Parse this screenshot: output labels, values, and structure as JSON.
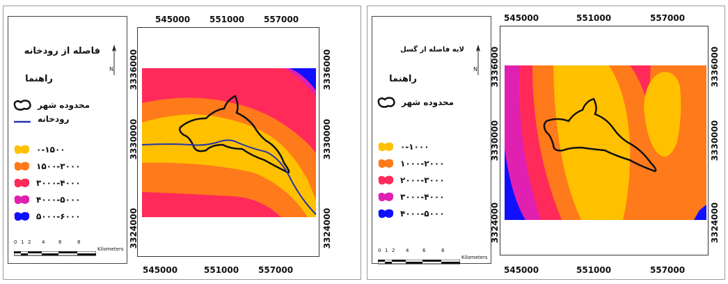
{
  "panels": [
    {
      "legend_title": "فاصله از رودخانه",
      "legend_subtitle": "راهنما",
      "boundary_label": "محدوده شهر",
      "river_label": "رودخانه",
      "classes": [
        {
          "label": "۰-۱۵۰۰",
          "color": "#ffc000"
        },
        {
          "label": "۱۵۰۰-۳۰۰۰",
          "color": "#ff7a1a"
        },
        {
          "label": "۳۰۰۰-۴۰۰۰",
          "color": "#ff2a5a"
        },
        {
          "label": "۴۰۰۰-۵۰۰۰",
          "color": "#e020b0"
        },
        {
          "label": "۵۰۰۰-۶۰۰۰",
          "color": "#1010ff"
        }
      ],
      "x_ticks_top": [
        "545000",
        "551000",
        "557000"
      ],
      "x_ticks_bottom": [
        "545000",
        "551000",
        "557000"
      ],
      "y_ticks": [
        "3336000",
        "3330000",
        "3324000"
      ],
      "scale_numbers": [
        "0",
        "1",
        "2",
        "4",
        "6",
        "8"
      ],
      "scale_unit": "Kilometers"
    },
    {
      "legend_title": "لایه فاصله از گسل",
      "legend_subtitle": "راهنما",
      "boundary_label": "محدوده شهر",
      "classes": [
        {
          "label": "۰-۱۰۰۰",
          "color": "#ffc000"
        },
        {
          "label": "۱۰۰۰-۲۰۰۰",
          "color": "#ff7a1a"
        },
        {
          "label": "۲۰۰۰-۳۰۰۰",
          "color": "#ff2a5a"
        },
        {
          "label": "۳۰۰۰-۴۰۰۰",
          "color": "#e020b0"
        },
        {
          "label": "۴۰۰۰-۵۰۰۰",
          "color": "#1010ff"
        }
      ],
      "x_ticks_top": [
        "545000",
        "551000",
        "557000"
      ],
      "x_ticks_bottom": [
        "545000",
        "551000",
        "557000"
      ],
      "y_ticks": [
        "3336000",
        "3330000",
        "3324000"
      ],
      "scale_numbers": [
        "0",
        "1",
        "2",
        "4",
        "6",
        "8"
      ],
      "scale_unit": "Kilometers"
    }
  ],
  "colors": {
    "boundary": "#111111",
    "river": "#2233aa"
  }
}
